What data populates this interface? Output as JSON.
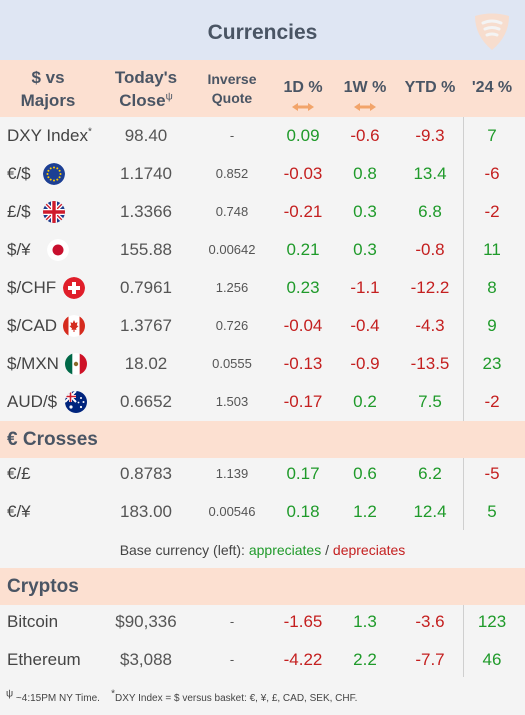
{
  "title": "Currencies",
  "colors": {
    "positive": "#1f9a2a",
    "negative": "#c41f1f",
    "header_bg": "#fce0d1",
    "title_bg": "#dfe6f3"
  },
  "headers": {
    "majors_line1": "$ vs",
    "majors_line2": "Majors",
    "close_line1": "Today's",
    "close_line2": "Close",
    "close_mark": "ψ",
    "inverse_line1": "Inverse",
    "inverse_line2": "Quote",
    "d1": "1D %",
    "w1": "1W %",
    "ytd": "YTD %",
    "y24": "'24 %"
  },
  "majors": [
    {
      "name": "DXY Index",
      "mark": "*",
      "icon": "none",
      "close": "98.40",
      "inverse": "-",
      "d1": "0.09",
      "w1": "-0.6",
      "ytd": "-9.3",
      "y24": "7"
    },
    {
      "name": "€/$",
      "icon": "eu-flag-icon",
      "close": "1.1740",
      "inverse": "0.852",
      "d1": "-0.03",
      "w1": "0.8",
      "ytd": "13.4",
      "y24": "-6"
    },
    {
      "name": "£/$",
      "icon": "uk-flag-icon",
      "close": "1.3366",
      "inverse": "0.748",
      "d1": "-0.21",
      "w1": "0.3",
      "ytd": "6.8",
      "y24": "-2"
    },
    {
      "name": "$/¥",
      "icon": "japan-flag-icon",
      "close": "155.88",
      "inverse": "0.00642",
      "d1": "0.21",
      "w1": "0.3",
      "ytd": "-0.8",
      "y24": "11"
    },
    {
      "name": "$/CHF",
      "icon": "swiss-flag-icon",
      "close": "0.7961",
      "inverse": "1.256",
      "d1": "0.23",
      "w1": "-1.1",
      "ytd": "-12.2",
      "y24": "8"
    },
    {
      "name": "$/CAD",
      "icon": "canada-flag-icon",
      "close": "1.3767",
      "inverse": "0.726",
      "d1": "-0.04",
      "w1": "-0.4",
      "ytd": "-4.3",
      "y24": "9"
    },
    {
      "name": "$/MXN",
      "icon": "mexico-flag-icon",
      "close": "18.02",
      "inverse": "0.0555",
      "d1": "-0.13",
      "w1": "-0.9",
      "ytd": "-13.5",
      "y24": "23"
    },
    {
      "name": "AUD/$",
      "icon": "australia-flag-icon",
      "close": "0.6652",
      "inverse": "1.503",
      "d1": "-0.17",
      "w1": "0.2",
      "ytd": "7.5",
      "y24": "-2"
    }
  ],
  "crosses": {
    "label": "€ Crosses",
    "rows": [
      {
        "name": "€/£",
        "close": "0.8783",
        "inverse": "1.139",
        "d1": "0.17",
        "w1": "0.6",
        "ytd": "6.2",
        "y24": "-5"
      },
      {
        "name": "€/¥",
        "close": "183.00",
        "inverse": "0.00546",
        "d1": "0.18",
        "w1": "1.2",
        "ytd": "12.4",
        "y24": "5"
      }
    ]
  },
  "legend": {
    "prefix": "Base currency (left): ",
    "up": "appreciates",
    "sep": " / ",
    "down": "depreciates"
  },
  "cryptos": {
    "label": "Cryptos",
    "rows": [
      {
        "name": "Bitcoin",
        "close": "$90,336",
        "inverse": "-",
        "d1": "-1.65",
        "w1": "1.3",
        "ytd": "-3.6",
        "y24": "123"
      },
      {
        "name": "Ethereum",
        "close": "$3,088",
        "inverse": "-",
        "d1": "-4.22",
        "w1": "2.2",
        "ytd": "-7.7",
        "y24": "46"
      }
    ]
  },
  "footnotes": {
    "time_mark": "ψ",
    "time": " ~4:15PM NY Time.",
    "dxy_mark": "*",
    "dxy": "DXY Index = $ versus basket: €, ¥, £, CAD, SEK, CHF."
  }
}
